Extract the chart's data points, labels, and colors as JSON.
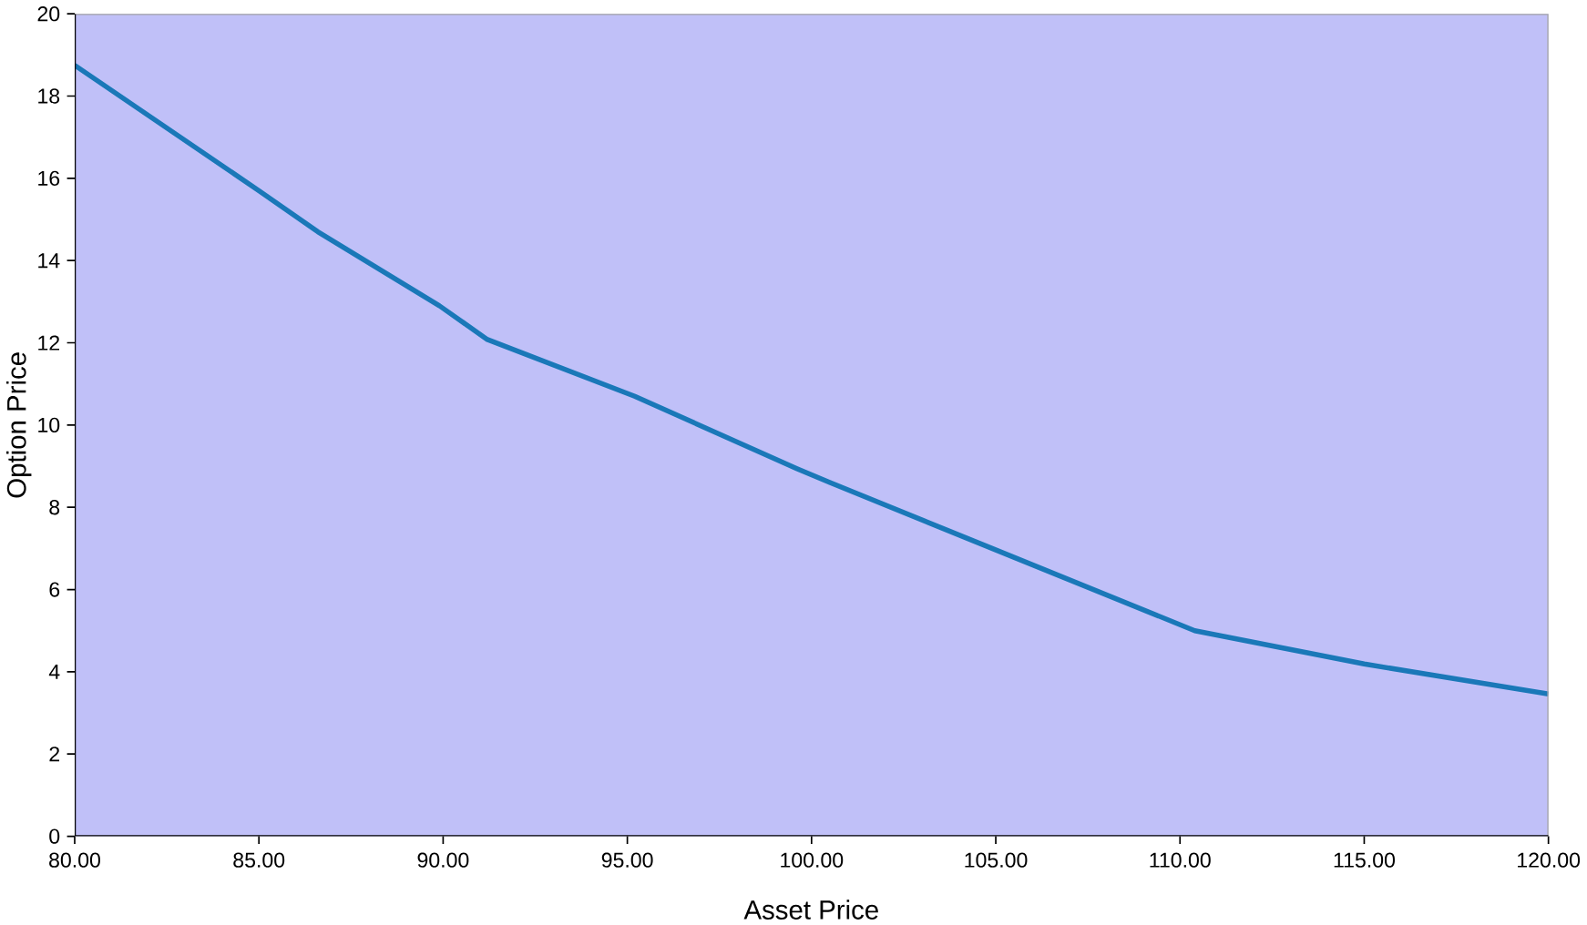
{
  "chart_data": {
    "type": "line",
    "xlabel": "Asset Price",
    "ylabel": "Option Price",
    "x": [
      80,
      85,
      86.6,
      89.9,
      91.2,
      95.2,
      99.6,
      100.5,
      104.9,
      110.4,
      115,
      120
    ],
    "series": [
      {
        "color": "#1a78b8",
        "values": [
          18.75,
          15.7,
          14.7,
          12.9,
          12.08,
          10.7,
          8.94,
          8.6,
          7.0,
          5.0,
          4.19,
          3.46
        ]
      }
    ],
    "xlim": [
      80,
      120
    ],
    "xticks": [
      {
        "value": 80,
        "label": "80.00"
      },
      {
        "value": 85,
        "label": "85.00"
      },
      {
        "value": 90,
        "label": "90.00"
      },
      {
        "value": 95,
        "label": "95.00"
      },
      {
        "value": 100,
        "label": "100.00"
      },
      {
        "value": 105,
        "label": "105.00"
      },
      {
        "value": 110,
        "label": "110.00"
      },
      {
        "value": 115,
        "label": "115.00"
      },
      {
        "value": 120,
        "label": "120.00"
      }
    ],
    "ylim": [
      0,
      20
    ],
    "yticks": [
      0,
      2,
      4,
      6,
      8,
      10,
      12,
      14,
      16,
      18,
      20
    ],
    "marker": "none",
    "line_style": "solid"
  }
}
